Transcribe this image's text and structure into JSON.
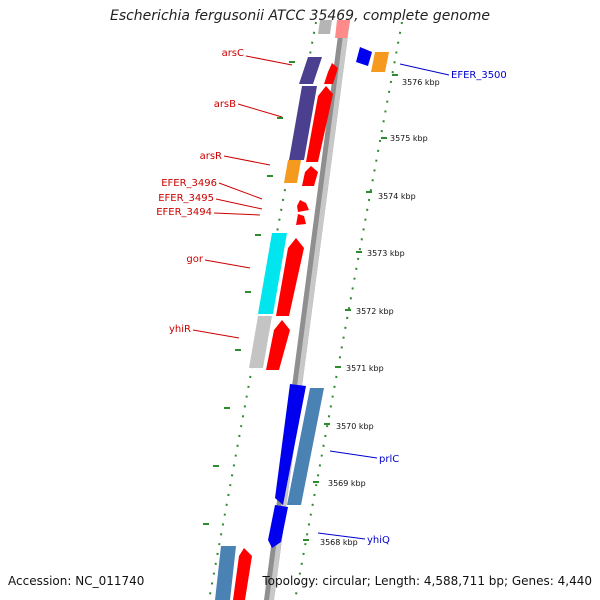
{
  "title": "Escherichia fergusonii ATCC 35469, complete genome",
  "footer": {
    "accession": "Accession: NC_011740",
    "topology": "Topology: circular; Length: 4,588,711 bp; Genes: 4,440"
  },
  "colors": {
    "backbone": "#9a9a9a",
    "ruler": "#2e8b2e",
    "label_red": "#cc0000",
    "label_blue": "#0000cc"
  },
  "kbp_ticks": [
    {
      "label": "3576 kbp",
      "kb": 3576
    },
    {
      "label": "3575 kbp",
      "kb": 3575
    },
    {
      "label": "3574 kbp",
      "kb": 3574
    },
    {
      "label": "3573 kbp",
      "kb": 3573
    },
    {
      "label": "3572 kbp",
      "kb": 3572
    },
    {
      "label": "3571 kbp",
      "kb": 3571
    },
    {
      "label": "3570 kbp",
      "kb": 3570
    },
    {
      "label": "3569 kbp",
      "kb": 3569
    },
    {
      "label": "3568 kbp",
      "kb": 3568
    }
  ],
  "gene_labels": {
    "arsC": "arsC",
    "arsB": "arsB",
    "arsR": "arsR",
    "efer3496": "EFER_3496",
    "efer3495": "EFER_3495",
    "efer3494": "EFER_3494",
    "gor": "gor",
    "yhiR": "yhiR",
    "efer3500": "EFER_3500",
    "prlC": "prlC",
    "yhiQ": "yhiQ"
  }
}
